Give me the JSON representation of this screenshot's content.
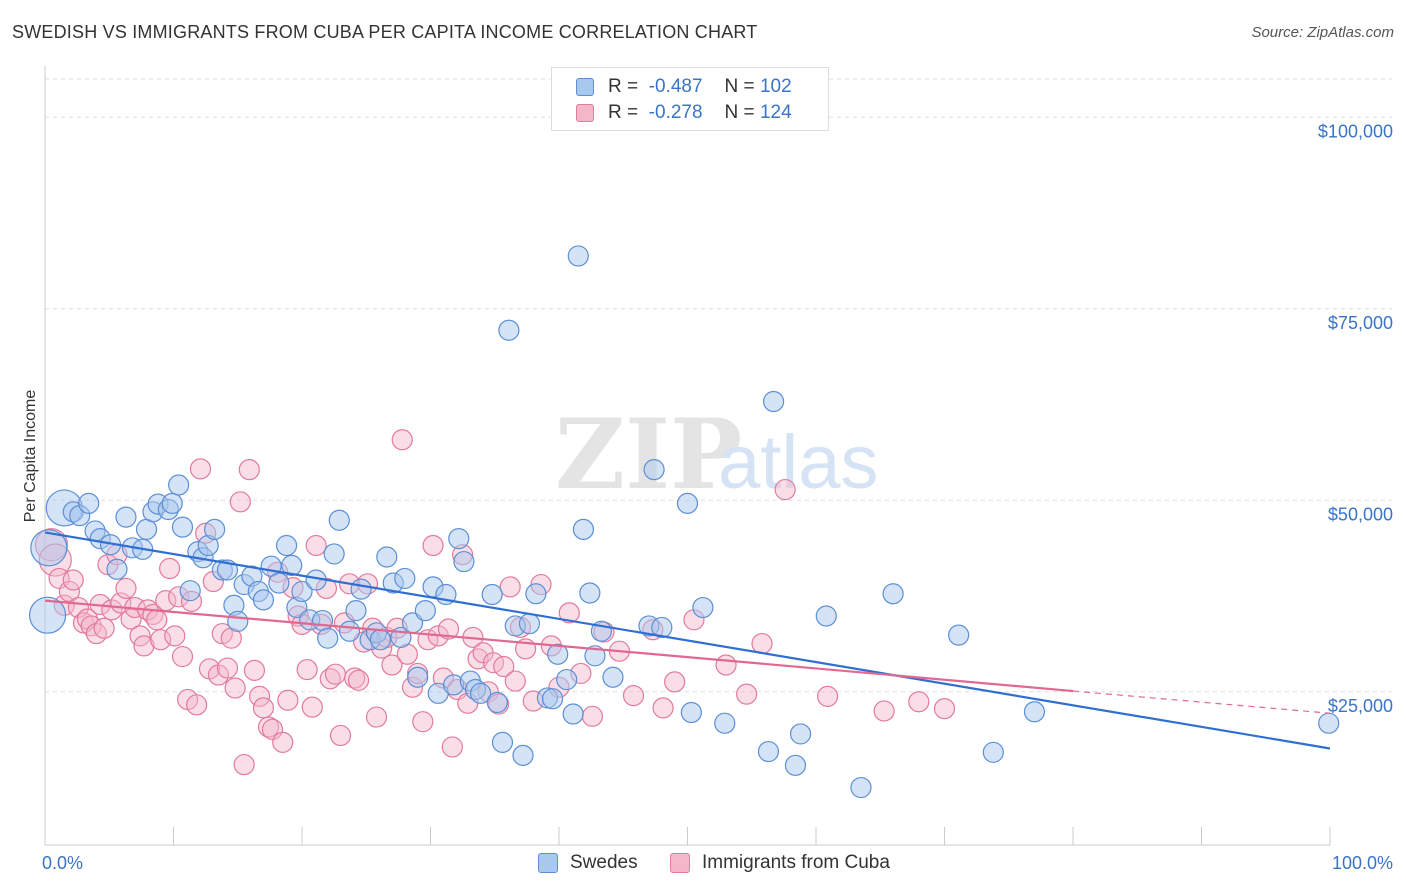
{
  "header": {
    "title": "SWEDISH VS IMMIGRANTS FROM CUBA PER CAPITA INCOME CORRELATION CHART",
    "source": "Source: ZipAtlas.com"
  },
  "watermark": {
    "zip": "ZIP",
    "atlas": "atlas"
  },
  "legend": {
    "rows": [
      {
        "r_label": "R =",
        "r_value": "-0.487",
        "n_label": "N =",
        "n_value": "102"
      },
      {
        "r_label": "R =",
        "r_value": "-0.278",
        "n_label": "N =",
        "n_value": "124"
      }
    ]
  },
  "bottom_legend": {
    "swedes": "Swedes",
    "cuba": "Immigrants from Cuba"
  },
  "colors": {
    "blue_fill": "#a9c8ee",
    "blue_stroke": "#5b8fd6",
    "blue_line": "#2f6fd1",
    "pink_fill": "#f4b6c9",
    "pink_stroke": "#e27a9c",
    "pink_line": "#e06892",
    "tick_text": "#3b74c6",
    "grid": "#dddddd"
  },
  "chart_data": {
    "type": "scatter",
    "title": "SWEDISH VS IMMIGRANTS FROM CUBA PER CAPITA INCOME CORRELATION CHART",
    "xlabel": "",
    "ylabel": "Per Capita Income",
    "xlim": [
      0,
      100
    ],
    "ylim": [
      5000,
      105000
    ],
    "x_tick_labels": [
      "0.0%",
      "100.0%"
    ],
    "y_ticks": [
      25000,
      50000,
      75000,
      100000
    ],
    "y_tick_labels": [
      "$25,000",
      "$50,000",
      "$75,000",
      "$100,000"
    ],
    "grid": true,
    "legend_placement": "top-center",
    "series": [
      {
        "name": "Swedes",
        "r": -0.487,
        "n": 102,
        "trend": {
          "x": [
            0,
            100
          ],
          "y": [
            45800,
            17600
          ]
        },
        "points": [
          [
            0.2,
            35000
          ],
          [
            0.3,
            43800
          ],
          [
            1.5,
            49000
          ],
          [
            2.2,
            48500
          ],
          [
            2.7,
            48000
          ],
          [
            3.4,
            49600
          ],
          [
            3.9,
            46000
          ],
          [
            4.3,
            45000
          ],
          [
            5.1,
            44200
          ],
          [
            5.6,
            41000
          ],
          [
            6.3,
            47800
          ],
          [
            6.8,
            43800
          ],
          [
            7.6,
            43600
          ],
          [
            7.9,
            46200
          ],
          [
            8.4,
            48500
          ],
          [
            8.8,
            49500
          ],
          [
            9.6,
            48800
          ],
          [
            9.9,
            49600
          ],
          [
            10.4,
            52000
          ],
          [
            10.7,
            46500
          ],
          [
            11.3,
            38200
          ],
          [
            11.9,
            43300
          ],
          [
            12.3,
            42500
          ],
          [
            12.7,
            44100
          ],
          [
            13.2,
            46200
          ],
          [
            13.8,
            40900
          ],
          [
            14.2,
            40900
          ],
          [
            14.7,
            36300
          ],
          [
            15.0,
            34200
          ],
          [
            15.5,
            39000
          ],
          [
            16.1,
            40100
          ],
          [
            16.6,
            38100
          ],
          [
            17.0,
            37000
          ],
          [
            17.6,
            41400
          ],
          [
            18.2,
            39200
          ],
          [
            18.8,
            44100
          ],
          [
            19.2,
            41500
          ],
          [
            19.6,
            36000
          ],
          [
            20.0,
            38100
          ],
          [
            20.6,
            34400
          ],
          [
            21.1,
            39600
          ],
          [
            21.6,
            34300
          ],
          [
            22.0,
            32000
          ],
          [
            22.5,
            43000
          ],
          [
            22.9,
            47400
          ],
          [
            23.7,
            32900
          ],
          [
            24.2,
            35600
          ],
          [
            24.6,
            38400
          ],
          [
            25.3,
            31800
          ],
          [
            25.8,
            32700
          ],
          [
            26.1,
            31800
          ],
          [
            26.6,
            42600
          ],
          [
            27.1,
            39200
          ],
          [
            27.7,
            32100
          ],
          [
            28.0,
            39800
          ],
          [
            28.6,
            34000
          ],
          [
            29.0,
            26900
          ],
          [
            29.6,
            35600
          ],
          [
            30.2,
            38700
          ],
          [
            30.6,
            24800
          ],
          [
            31.2,
            37700
          ],
          [
            31.8,
            25900
          ],
          [
            32.2,
            45000
          ],
          [
            32.6,
            42000
          ],
          [
            33.1,
            26400
          ],
          [
            33.5,
            25300
          ],
          [
            33.9,
            24800
          ],
          [
            34.8,
            37700
          ],
          [
            35.2,
            23600
          ],
          [
            35.6,
            18400
          ],
          [
            36.1,
            72200
          ],
          [
            36.6,
            33600
          ],
          [
            37.2,
            16700
          ],
          [
            37.7,
            33900
          ],
          [
            38.2,
            37800
          ],
          [
            39.1,
            24200
          ],
          [
            39.5,
            24100
          ],
          [
            39.9,
            29900
          ],
          [
            40.6,
            26600
          ],
          [
            41.1,
            22100
          ],
          [
            41.5,
            81900
          ],
          [
            41.9,
            46200
          ],
          [
            42.4,
            37900
          ],
          [
            42.8,
            29700
          ],
          [
            43.3,
            32900
          ],
          [
            44.2,
            26900
          ],
          [
            47.0,
            33600
          ],
          [
            47.4,
            54000
          ],
          [
            48.0,
            33400
          ],
          [
            50.0,
            49600
          ],
          [
            50.3,
            22300
          ],
          [
            51.2,
            36000
          ],
          [
            52.9,
            20900
          ],
          [
            56.3,
            17200
          ],
          [
            56.7,
            62900
          ],
          [
            58.4,
            15400
          ],
          [
            58.8,
            19500
          ],
          [
            60.8,
            34900
          ],
          [
            63.5,
            12500
          ],
          [
            66.0,
            37800
          ],
          [
            71.1,
            32400
          ],
          [
            73.8,
            17100
          ],
          [
            77.0,
            22400
          ],
          [
            99.9,
            20900
          ]
        ]
      },
      {
        "name": "Immigrants from Cuba",
        "r": -0.278,
        "n": 124,
        "trend": {
          "x": [
            0,
            80
          ],
          "y": [
            36900,
            25100
          ]
        },
        "trend_extension": {
          "x": [
            80,
            100
          ],
          "y": [
            25100,
            22200
          ]
        },
        "points": [
          [
            0.5,
            44200
          ],
          [
            0.8,
            42200
          ],
          [
            1.1,
            39800
          ],
          [
            1.5,
            36300
          ],
          [
            1.9,
            38100
          ],
          [
            2.2,
            39600
          ],
          [
            2.6,
            36000
          ],
          [
            3.0,
            34000
          ],
          [
            3.3,
            34500
          ],
          [
            3.6,
            33600
          ],
          [
            4.0,
            32600
          ],
          [
            4.3,
            36400
          ],
          [
            4.6,
            33300
          ],
          [
            4.9,
            41600
          ],
          [
            5.2,
            35700
          ],
          [
            5.6,
            42900
          ],
          [
            5.9,
            36600
          ],
          [
            6.3,
            38500
          ],
          [
            6.7,
            34500
          ],
          [
            7.0,
            36000
          ],
          [
            7.4,
            32300
          ],
          [
            7.7,
            31000
          ],
          [
            8.0,
            35700
          ],
          [
            8.4,
            35100
          ],
          [
            8.7,
            34400
          ],
          [
            9.0,
            31800
          ],
          [
            9.4,
            36900
          ],
          [
            9.7,
            41100
          ],
          [
            10.1,
            32300
          ],
          [
            10.4,
            37400
          ],
          [
            10.7,
            29600
          ],
          [
            11.1,
            24000
          ],
          [
            11.4,
            36800
          ],
          [
            11.8,
            23300
          ],
          [
            12.1,
            54100
          ],
          [
            12.5,
            45700
          ],
          [
            12.8,
            28000
          ],
          [
            13.1,
            39400
          ],
          [
            13.5,
            27200
          ],
          [
            13.8,
            32600
          ],
          [
            14.2,
            28100
          ],
          [
            14.5,
            32000
          ],
          [
            14.8,
            25500
          ],
          [
            15.2,
            49800
          ],
          [
            15.5,
            15500
          ],
          [
            15.9,
            54000
          ],
          [
            16.3,
            27800
          ],
          [
            16.7,
            24400
          ],
          [
            17.0,
            22900
          ],
          [
            17.4,
            20400
          ],
          [
            17.7,
            20100
          ],
          [
            18.1,
            40600
          ],
          [
            18.5,
            18400
          ],
          [
            18.9,
            23900
          ],
          [
            19.3,
            38600
          ],
          [
            19.7,
            34900
          ],
          [
            20.0,
            33800
          ],
          [
            20.4,
            27900
          ],
          [
            20.8,
            23000
          ],
          [
            21.1,
            44100
          ],
          [
            21.5,
            33800
          ],
          [
            21.9,
            38500
          ],
          [
            22.2,
            26700
          ],
          [
            22.6,
            27300
          ],
          [
            23.0,
            19300
          ],
          [
            23.3,
            34000
          ],
          [
            23.7,
            39100
          ],
          [
            24.1,
            26800
          ],
          [
            24.4,
            26500
          ],
          [
            24.8,
            31500
          ],
          [
            25.1,
            39100
          ],
          [
            25.5,
            33300
          ],
          [
            25.8,
            21700
          ],
          [
            26.2,
            30700
          ],
          [
            26.6,
            32100
          ],
          [
            27.0,
            28500
          ],
          [
            27.4,
            33300
          ],
          [
            27.8,
            57900
          ],
          [
            28.2,
            29900
          ],
          [
            28.6,
            25600
          ],
          [
            29.0,
            27400
          ],
          [
            29.4,
            21100
          ],
          [
            29.8,
            31800
          ],
          [
            30.2,
            44100
          ],
          [
            30.6,
            32300
          ],
          [
            31.0,
            26800
          ],
          [
            31.4,
            33200
          ],
          [
            31.7,
            17800
          ],
          [
            32.1,
            25300
          ],
          [
            32.5,
            42900
          ],
          [
            32.9,
            23500
          ],
          [
            33.3,
            32100
          ],
          [
            33.7,
            29300
          ],
          [
            34.1,
            30100
          ],
          [
            34.5,
            25000
          ],
          [
            34.9,
            28800
          ],
          [
            35.3,
            23400
          ],
          [
            35.7,
            28300
          ],
          [
            36.2,
            38700
          ],
          [
            36.6,
            26400
          ],
          [
            37.0,
            33400
          ],
          [
            37.4,
            30600
          ],
          [
            38.0,
            23800
          ],
          [
            38.6,
            39000
          ],
          [
            39.4,
            31000
          ],
          [
            40.0,
            25600
          ],
          [
            40.8,
            35300
          ],
          [
            41.7,
            27400
          ],
          [
            42.6,
            21800
          ],
          [
            43.5,
            32800
          ],
          [
            44.7,
            30300
          ],
          [
            45.8,
            24500
          ],
          [
            47.3,
            33100
          ],
          [
            48.1,
            22900
          ],
          [
            49.0,
            26300
          ],
          [
            50.5,
            34400
          ],
          [
            53.0,
            28500
          ],
          [
            54.6,
            24700
          ],
          [
            55.8,
            31300
          ],
          [
            57.6,
            51400
          ],
          [
            60.9,
            24400
          ],
          [
            65.3,
            22500
          ],
          [
            68.0,
            23700
          ],
          [
            70.0,
            22800
          ]
        ]
      }
    ]
  }
}
